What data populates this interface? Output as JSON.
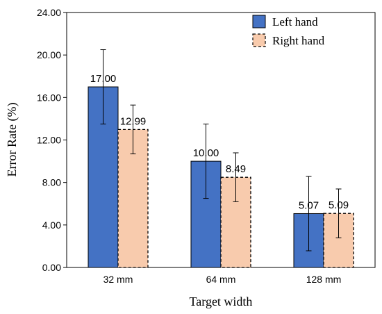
{
  "chart_data": {
    "type": "bar",
    "title": "",
    "xlabel": "Target width",
    "ylabel": "Error Rate (%)",
    "categories": [
      "32 mm",
      "64 mm",
      "128 mm"
    ],
    "ylim": [
      0,
      24
    ],
    "yticks": [
      "0.00",
      "4.00",
      "8.00",
      "12.00",
      "16.00",
      "20.00",
      "24.00"
    ],
    "grid": false,
    "legend_position": "top-right",
    "series": [
      {
        "name": "Left hand",
        "values": [
          17.0,
          10.0,
          5.07
        ],
        "labels": [
          "17.00",
          "10.00",
          "5.07"
        ],
        "error": [
          3.5,
          3.5,
          3.5
        ],
        "fill": "#4472c4",
        "stroke": "#000000",
        "dashed": false
      },
      {
        "name": "Right hand",
        "values": [
          12.99,
          8.49,
          5.09
        ],
        "labels": [
          "12.99",
          "8.49",
          "5.09"
        ],
        "error": [
          2.3,
          2.3,
          2.3
        ],
        "fill": "#f8cbad",
        "stroke": "#000000",
        "dashed": true
      }
    ]
  }
}
